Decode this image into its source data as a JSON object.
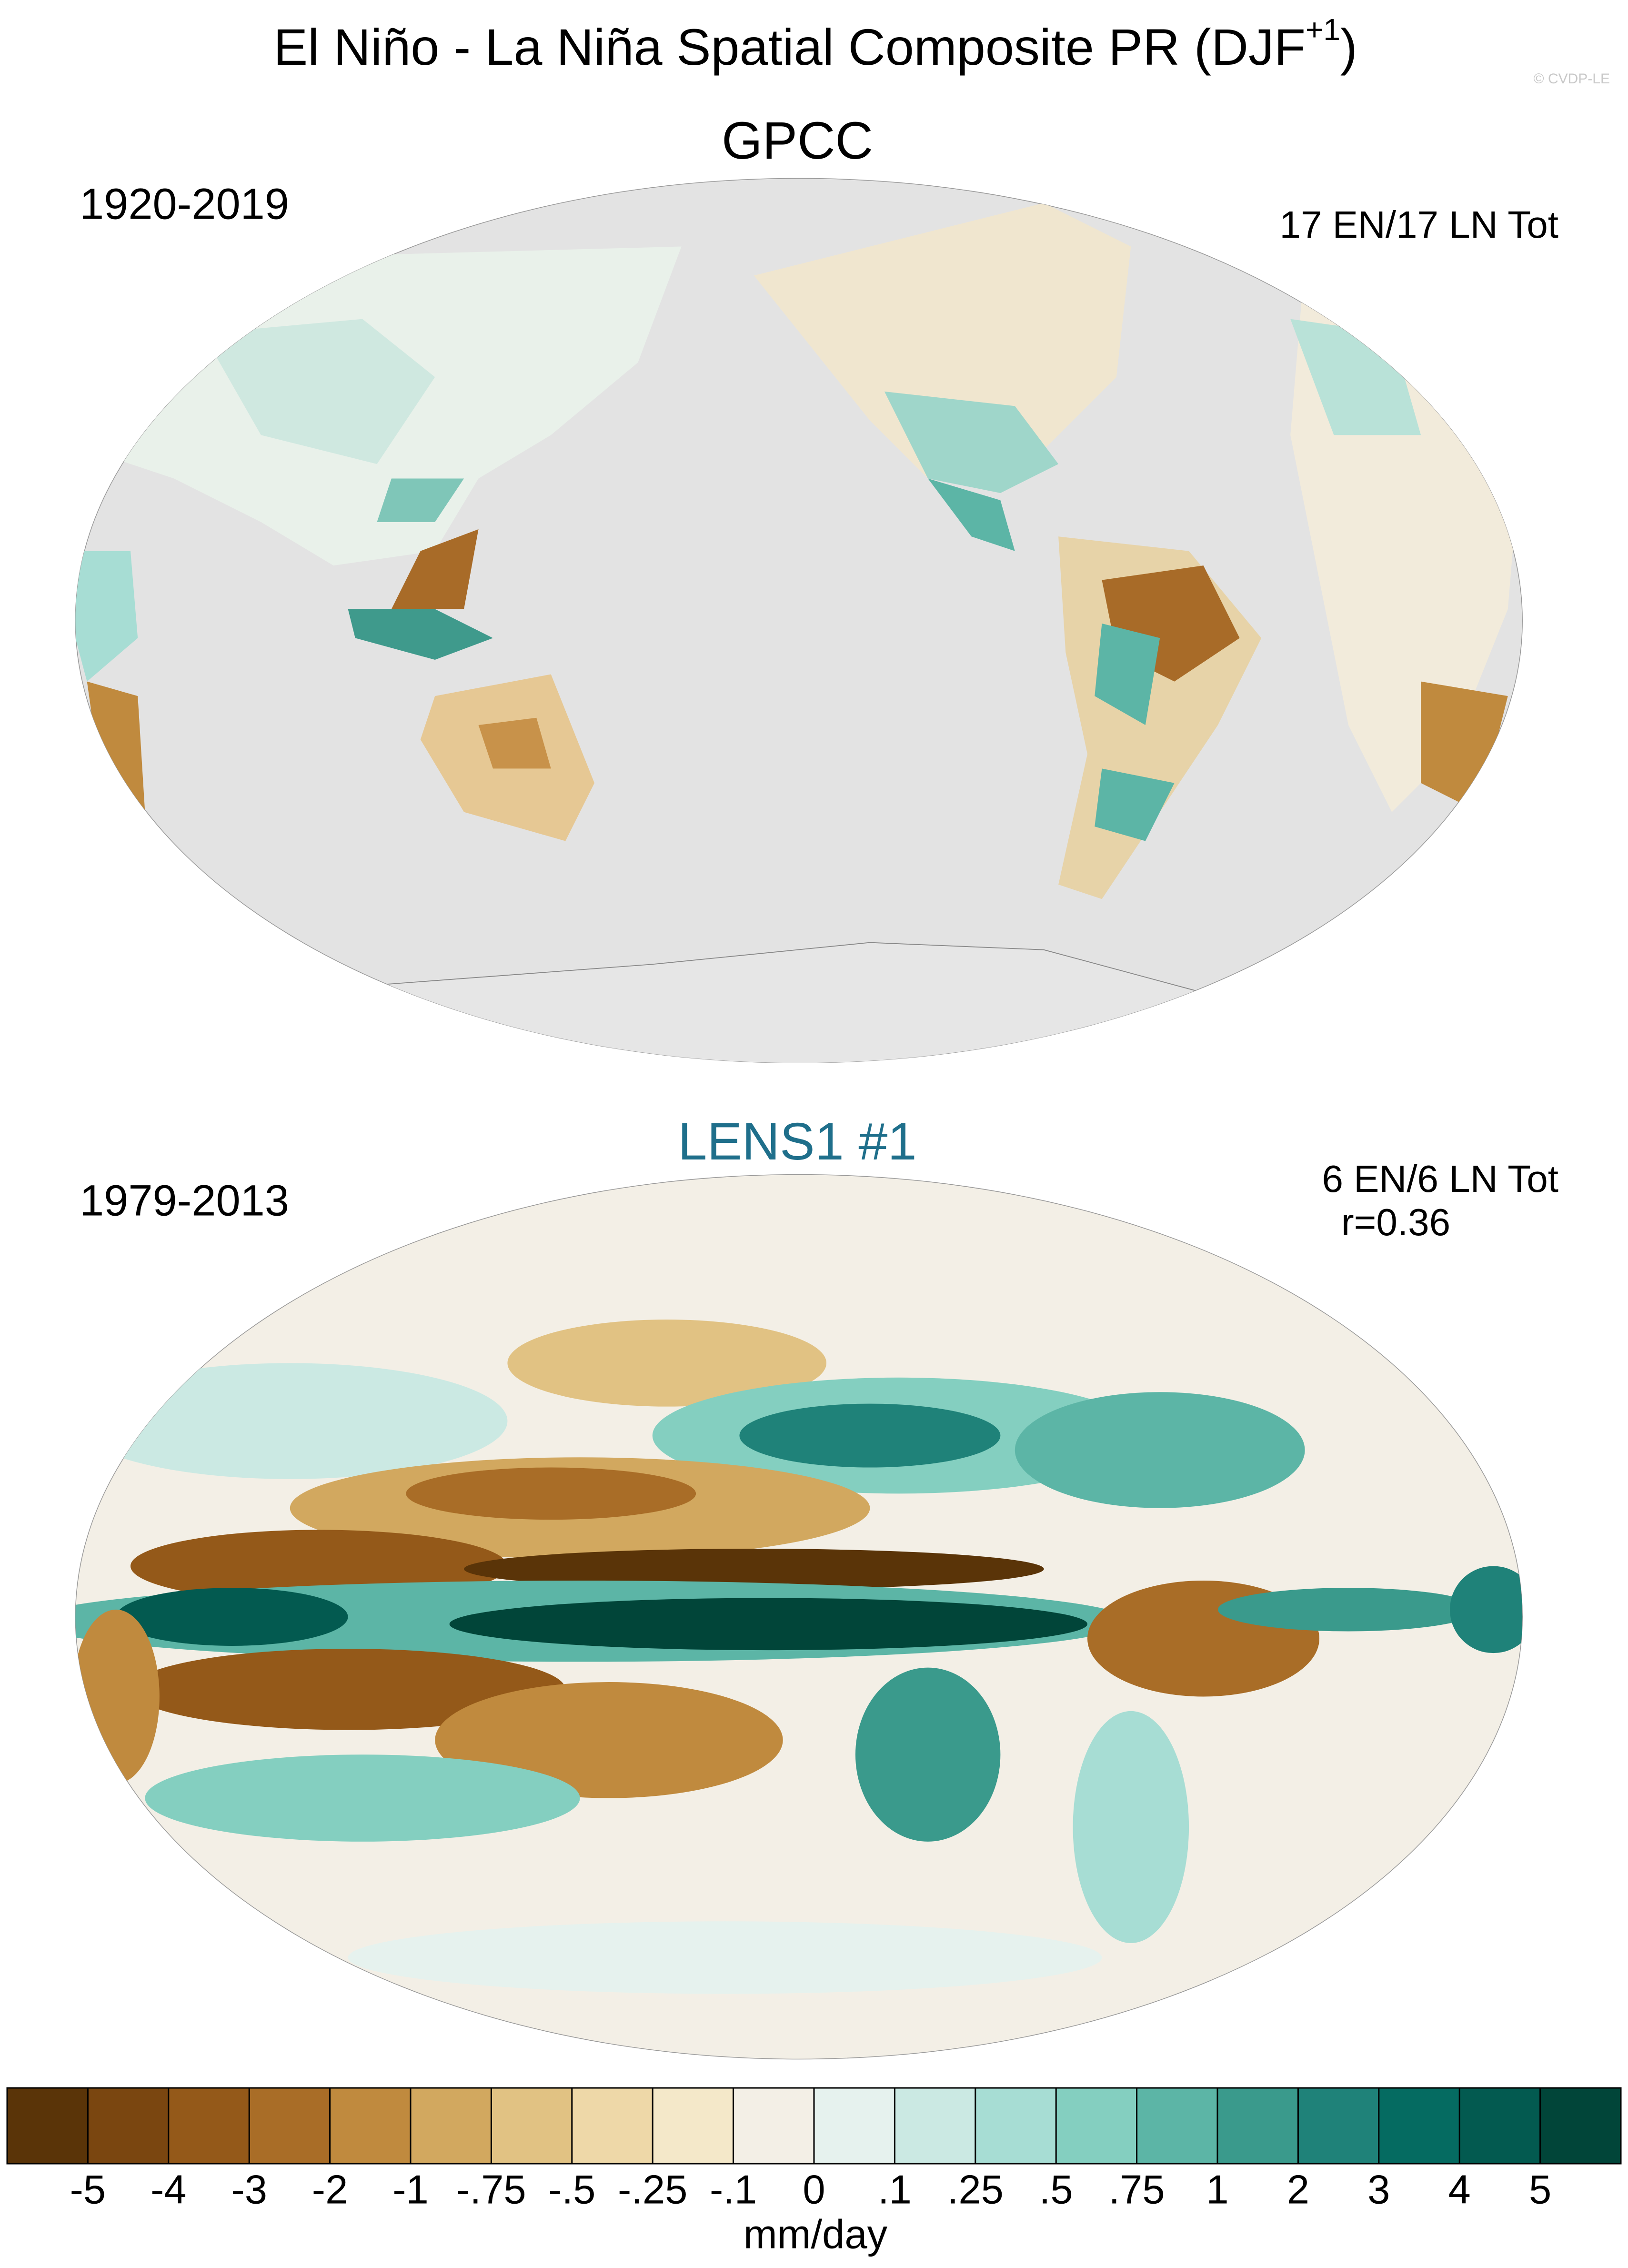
{
  "title": "El Niño - La Niña Spatial Composite PR (DJF",
  "title_superscript": "+1",
  "title_close": ")",
  "watermark": "© CVDP-LE",
  "panels": [
    {
      "title": "GPCC",
      "period": "1920-2019",
      "stats": [
        "17 EN/17 LN Tot"
      ]
    },
    {
      "title": "LENS1 #1",
      "period": "1979-2013",
      "stats": [
        "6 EN/6 LN Tot",
        "r=0.36"
      ]
    }
  ],
  "colorbar": {
    "colors": [
      "#5a3408",
      "#7a4610",
      "#945919",
      "#a96d27",
      "#c08a3e",
      "#d2a85f",
      "#e1c283",
      "#eed8a8",
      "#f4e8c9",
      "#f3efe6",
      "#e6f2ee",
      "#cbe9e3",
      "#a7ddd4",
      "#84cfc0",
      "#5cb5a6",
      "#3a9a8c",
      "#1f8279",
      "#056b61",
      "#035a50",
      "#014539"
    ],
    "ticks": [
      -5,
      -4,
      -3,
      -2,
      -1,
      {
        "value": -0.75,
        "label": "-.75"
      },
      {
        "value": -0.5,
        "label": "-.5"
      },
      {
        "value": -0.25,
        "label": "-.25"
      },
      {
        "value": -0.1,
        "label": "-.1"
      },
      0,
      {
        "value": 0.1,
        "label": ".1"
      },
      {
        "value": 0.25,
        "label": ".25"
      },
      {
        "value": 0.5,
        "label": ".5"
      },
      {
        "value": 0.75,
        "label": ".75"
      },
      1,
      2,
      3,
      4,
      5
    ],
    "units": "mm/day"
  }
}
